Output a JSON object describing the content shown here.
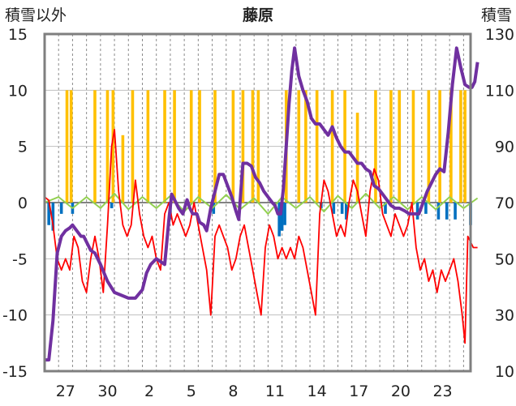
{
  "chart_data": {
    "type": "line",
    "title": "藤原",
    "left_axis_label": "積雪以外",
    "right_axis_label": "積雪",
    "left_ylim": [
      -15,
      15
    ],
    "left_ticks": [
      "15",
      "10",
      "5",
      "0",
      "-5",
      "-10",
      "-15"
    ],
    "right_ylim": [
      10,
      130
    ],
    "right_ticks": [
      "130",
      "110",
      "90",
      "70",
      "50",
      "30",
      "10"
    ],
    "x_tick_labels": [
      "27",
      "30",
      "2",
      "5",
      "8",
      "11",
      "14",
      "17",
      "20",
      "23"
    ],
    "x_range_days": [
      0,
      30.5
    ],
    "x_tick_positions": [
      1.5,
      4.5,
      7.5,
      10.5,
      13.5,
      16.5,
      19.5,
      22.5,
      25.5,
      28.5
    ],
    "grid": "vertical-dashed-daily",
    "colors": {
      "snow_depth": "#7030a0",
      "temperature": "#ff0000",
      "precipitation": "#ffc000",
      "snowfall_change": "#0070c0",
      "other": "#92d050"
    },
    "series": [
      {
        "key": "snow_depth",
        "axis": "right",
        "points": [
          [
            0,
            14
          ],
          [
            0.3,
            14
          ],
          [
            0.6,
            28
          ],
          [
            0.9,
            52
          ],
          [
            1.2,
            58
          ],
          [
            1.5,
            60
          ],
          [
            1.8,
            61
          ],
          [
            2.0,
            62
          ],
          [
            2.3,
            60
          ],
          [
            2.6,
            58
          ],
          [
            2.8,
            58
          ],
          [
            3.0,
            56
          ],
          [
            3.3,
            53
          ],
          [
            3.6,
            52
          ],
          [
            4.0,
            48
          ],
          [
            4.5,
            42
          ],
          [
            5.0,
            38
          ],
          [
            5.5,
            37
          ],
          [
            6.0,
            36
          ],
          [
            6.5,
            36
          ],
          [
            7.0,
            39
          ],
          [
            7.3,
            45
          ],
          [
            7.6,
            48
          ],
          [
            8.0,
            50
          ],
          [
            8.3,
            49
          ],
          [
            8.6,
            48
          ],
          [
            8.9,
            64
          ],
          [
            9.1,
            73
          ],
          [
            9.3,
            71
          ],
          [
            9.6,
            68
          ],
          [
            9.9,
            66
          ],
          [
            10.2,
            71
          ],
          [
            10.4,
            68
          ],
          [
            10.6,
            66
          ],
          [
            10.9,
            66
          ],
          [
            11.1,
            63
          ],
          [
            11.4,
            62
          ],
          [
            11.6,
            60
          ],
          [
            11.9,
            68
          ],
          [
            12.2,
            74
          ],
          [
            12.5,
            80
          ],
          [
            12.8,
            80
          ],
          [
            13.1,
            76
          ],
          [
            13.4,
            72
          ],
          [
            13.7,
            67
          ],
          [
            13.9,
            64
          ],
          [
            14.2,
            84
          ],
          [
            14.5,
            84
          ],
          [
            14.8,
            83
          ],
          [
            15.1,
            79
          ],
          [
            15.4,
            77
          ],
          [
            15.7,
            74
          ],
          [
            16.0,
            72
          ],
          [
            16.3,
            70
          ],
          [
            16.5,
            69
          ],
          [
            16.7,
            66
          ],
          [
            16.9,
            66
          ],
          [
            17.1,
            75
          ],
          [
            17.3,
            90
          ],
          [
            17.5,
            105
          ],
          [
            17.7,
            117
          ],
          [
            17.9,
            125
          ],
          [
            18.2,
            115
          ],
          [
            18.5,
            110
          ],
          [
            18.8,
            106
          ],
          [
            19.1,
            100
          ],
          [
            19.4,
            98
          ],
          [
            19.7,
            98
          ],
          [
            20.0,
            96
          ],
          [
            20.3,
            94
          ],
          [
            20.6,
            97
          ],
          [
            20.9,
            93
          ],
          [
            21.2,
            90
          ],
          [
            21.5,
            88
          ],
          [
            21.8,
            88
          ],
          [
            22.1,
            86
          ],
          [
            22.4,
            84
          ],
          [
            22.7,
            84
          ],
          [
            23.0,
            82
          ],
          [
            23.3,
            81
          ],
          [
            23.6,
            76
          ],
          [
            23.9,
            75
          ],
          [
            24.2,
            73
          ],
          [
            24.5,
            71
          ],
          [
            24.8,
            69
          ],
          [
            25.1,
            68
          ],
          [
            25.4,
            68
          ],
          [
            25.8,
            67
          ],
          [
            26.1,
            66
          ],
          [
            26.4,
            66
          ],
          [
            26.8,
            66
          ],
          [
            27.1,
            70
          ],
          [
            27.4,
            74
          ],
          [
            27.7,
            77
          ],
          [
            28.0,
            80
          ],
          [
            28.3,
            82
          ],
          [
            28.6,
            81
          ],
          [
            28.9,
            95
          ],
          [
            29.2,
            112
          ],
          [
            29.5,
            125
          ],
          [
            29.8,
            118
          ],
          [
            30.1,
            112
          ],
          [
            30.4,
            111
          ],
          [
            30.6,
            111
          ],
          [
            30.8,
            113
          ],
          [
            31.0,
            120
          ]
        ]
      },
      {
        "key": "temperature",
        "axis": "left",
        "points": [
          [
            0,
            0.5
          ],
          [
            0.3,
            0.2
          ],
          [
            0.6,
            -2
          ],
          [
            0.9,
            -5
          ],
          [
            1.2,
            -6
          ],
          [
            1.5,
            -5
          ],
          [
            1.8,
            -6
          ],
          [
            2.1,
            -3
          ],
          [
            2.4,
            -4
          ],
          [
            2.7,
            -7
          ],
          [
            3.0,
            -8
          ],
          [
            3.3,
            -5
          ],
          [
            3.6,
            -3
          ],
          [
            3.9,
            -5
          ],
          [
            4.2,
            -8
          ],
          [
            4.5,
            -2
          ],
          [
            4.8,
            5
          ],
          [
            5.0,
            6.5
          ],
          [
            5.3,
            1
          ],
          [
            5.6,
            -2
          ],
          [
            5.9,
            -3
          ],
          [
            6.2,
            -2
          ],
          [
            6.5,
            2
          ],
          [
            6.8,
            -1
          ],
          [
            7.1,
            -3
          ],
          [
            7.4,
            -4
          ],
          [
            7.7,
            -3
          ],
          [
            8.0,
            -5
          ],
          [
            8.3,
            -6
          ],
          [
            8.6,
            -1
          ],
          [
            8.9,
            0
          ],
          [
            9.2,
            -2
          ],
          [
            9.5,
            -1
          ],
          [
            9.8,
            -2
          ],
          [
            10.1,
            -3
          ],
          [
            10.4,
            -2
          ],
          [
            10.7,
            0
          ],
          [
            11.0,
            -2
          ],
          [
            11.3,
            -4
          ],
          [
            11.6,
            -6
          ],
          [
            11.9,
            -10
          ],
          [
            12.2,
            -3
          ],
          [
            12.5,
            -2
          ],
          [
            12.8,
            -3
          ],
          [
            13.1,
            -4
          ],
          [
            13.4,
            -6
          ],
          [
            13.7,
            -5
          ],
          [
            14.0,
            -3
          ],
          [
            14.3,
            -2
          ],
          [
            14.6,
            -4
          ],
          [
            14.9,
            -6
          ],
          [
            15.2,
            -8
          ],
          [
            15.5,
            -10
          ],
          [
            15.8,
            -4
          ],
          [
            16.1,
            -2
          ],
          [
            16.4,
            -3
          ],
          [
            16.7,
            -5
          ],
          [
            17.0,
            -4
          ],
          [
            17.3,
            -5
          ],
          [
            17.6,
            -4
          ],
          [
            17.9,
            -5
          ],
          [
            18.2,
            -3
          ],
          [
            18.5,
            -4
          ],
          [
            18.8,
            -6
          ],
          [
            19.1,
            -8
          ],
          [
            19.4,
            -10
          ],
          [
            19.7,
            -1
          ],
          [
            20.0,
            2
          ],
          [
            20.3,
            1
          ],
          [
            20.6,
            -1
          ],
          [
            20.9,
            -3
          ],
          [
            21.2,
            -2
          ],
          [
            21.5,
            -3
          ],
          [
            21.8,
            0
          ],
          [
            22.1,
            2
          ],
          [
            22.4,
            1
          ],
          [
            22.7,
            -1
          ],
          [
            23.0,
            -3
          ],
          [
            23.3,
            1
          ],
          [
            23.6,
            3
          ],
          [
            23.9,
            2
          ],
          [
            24.2,
            -1
          ],
          [
            24.5,
            -2
          ],
          [
            24.8,
            -3
          ],
          [
            25.1,
            -1
          ],
          [
            25.4,
            -2
          ],
          [
            25.7,
            -3
          ],
          [
            26.0,
            -2
          ],
          [
            26.3,
            0
          ],
          [
            26.6,
            -4
          ],
          [
            26.9,
            -6
          ],
          [
            27.2,
            -5
          ],
          [
            27.5,
            -7
          ],
          [
            27.8,
            -6
          ],
          [
            28.1,
            -8
          ],
          [
            28.4,
            -6
          ],
          [
            28.7,
            -7
          ],
          [
            29.0,
            -6
          ],
          [
            29.3,
            -5
          ],
          [
            29.6,
            -7
          ],
          [
            29.9,
            -10
          ],
          [
            30.1,
            -12.5
          ],
          [
            30.3,
            -3
          ],
          [
            30.5,
            -3.5
          ],
          [
            30.7,
            -4
          ],
          [
            31.0,
            -4
          ]
        ]
      },
      {
        "key": "other",
        "axis": "left",
        "points": [
          [
            0,
            0
          ],
          [
            1,
            0.5
          ],
          [
            2,
            -0.5
          ],
          [
            3,
            0.5
          ],
          [
            4,
            -0.5
          ],
          [
            5,
            0.8
          ],
          [
            6,
            -0.6
          ],
          [
            7,
            0.5
          ],
          [
            8,
            -0.5
          ],
          [
            9,
            0.6
          ],
          [
            10,
            -0.8
          ],
          [
            11,
            0.5
          ],
          [
            12,
            -0.5
          ],
          [
            13,
            0.7
          ],
          [
            14,
            -0.6
          ],
          [
            15,
            0.4
          ],
          [
            16,
            -1
          ],
          [
            17,
            0.5
          ],
          [
            18,
            -0.5
          ],
          [
            19,
            0.5
          ],
          [
            20,
            -0.8
          ],
          [
            21,
            0.6
          ],
          [
            22,
            -0.5
          ],
          [
            23,
            0.8
          ],
          [
            24,
            -0.5
          ],
          [
            25,
            0.5
          ],
          [
            26,
            -0.6
          ],
          [
            27,
            0.5
          ],
          [
            28,
            -0.6
          ],
          [
            29,
            0.5
          ],
          [
            30,
            -0.5
          ],
          [
            31,
            0.4
          ]
        ]
      },
      {
        "key": "precipitation",
        "axis": "left",
        "bars": [
          [
            1.6,
            10
          ],
          [
            1.9,
            10
          ],
          [
            3.6,
            10
          ],
          [
            4.5,
            10
          ],
          [
            4.9,
            10
          ],
          [
            5.6,
            6
          ],
          [
            6.3,
            10
          ],
          [
            7.4,
            10
          ],
          [
            8.6,
            10
          ],
          [
            9.3,
            10
          ],
          [
            10.5,
            10
          ],
          [
            11.1,
            10
          ],
          [
            12.2,
            10
          ],
          [
            13.5,
            10
          ],
          [
            14.2,
            10
          ],
          [
            14.9,
            10
          ],
          [
            15.3,
            10
          ],
          [
            17.3,
            10
          ],
          [
            18.2,
            10
          ],
          [
            18.7,
            10
          ],
          [
            19.5,
            10
          ],
          [
            20.6,
            10
          ],
          [
            21.5,
            10
          ],
          [
            22.4,
            8
          ],
          [
            23.7,
            10
          ],
          [
            24.8,
            10
          ],
          [
            25.4,
            10
          ],
          [
            26.4,
            10
          ],
          [
            27.5,
            10
          ],
          [
            28.3,
            10
          ],
          [
            29.1,
            10
          ],
          [
            29.8,
            10
          ],
          [
            30.1,
            10
          ]
        ]
      },
      {
        "key": "snowfall_change",
        "axis": "left",
        "bars": [
          [
            0.3,
            -2
          ],
          [
            0.6,
            -2.5
          ],
          [
            1.2,
            -1
          ],
          [
            2.0,
            -1
          ],
          [
            4.8,
            -0.5
          ],
          [
            9.0,
            -1.5
          ],
          [
            12.1,
            -1
          ],
          [
            16.8,
            -3
          ],
          [
            17.0,
            -2.5
          ],
          [
            17.2,
            -2
          ],
          [
            19.8,
            -0.5
          ],
          [
            20.7,
            -1
          ],
          [
            21.3,
            -1
          ],
          [
            21.6,
            -1.5
          ],
          [
            24.4,
            -1
          ],
          [
            26.7,
            -1.5
          ],
          [
            27.3,
            -1
          ],
          [
            28.2,
            -1.5
          ],
          [
            28.8,
            -1.5
          ],
          [
            29.4,
            -1.5
          ],
          [
            30.5,
            -2
          ]
        ]
      }
    ]
  }
}
